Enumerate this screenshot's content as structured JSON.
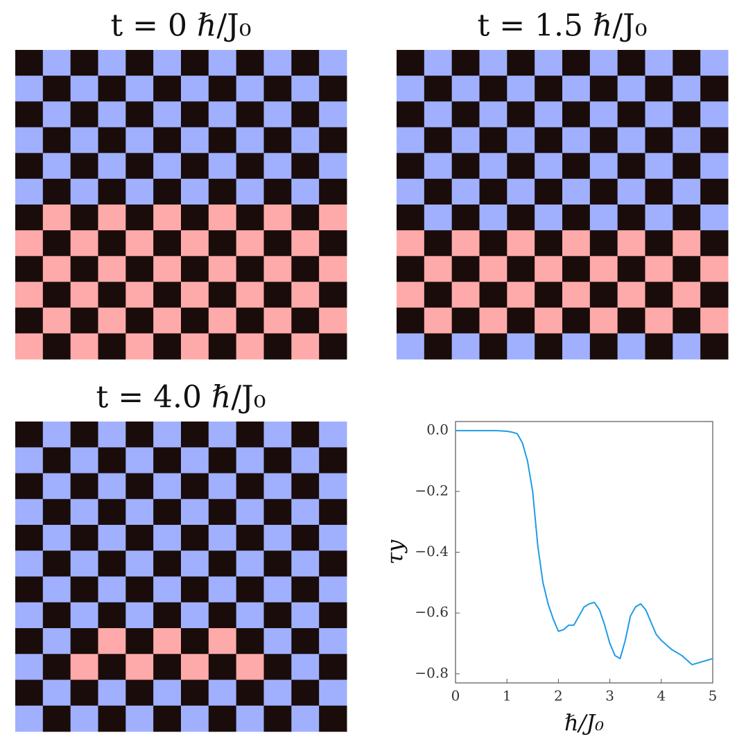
{
  "chart_data": [
    {
      "type": "grid",
      "title": "t = 0 ℏ/J₀",
      "colors": {
        "k": "#1a0c0a",
        "b": "#a0b0ff",
        "r": "#ffaaaa"
      },
      "rows": [
        "kbkbkbkbkbkb",
        "bkbkbkbkbkbk",
        "kbkbkbkbkbkb",
        "bkbkbkbkbkbk",
        "kbkbkbkbkbkb",
        "bkbkbkbkbkbk",
        "krkrkrkrkrkr",
        "rkrkrkrkrkrk",
        "krkrkrkrkrkr",
        "rkrkrkrkrkrk",
        "krkrkrkrkrkr",
        "rkrkrkrkrkrk"
      ]
    },
    {
      "type": "grid",
      "title": "t = 1.5 ℏ/J₀",
      "colors": {
        "k": "#1a0c0a",
        "b": "#a0b0ff",
        "r": "#ffaaaa"
      },
      "rows": [
        "kbkbkbkbkbkb",
        "bkbkbkbkbkbk",
        "kbkbkbkbkbkb",
        "bkbkbkbkbkbk",
        "kbkbkbkbkbkb",
        "bkbkbkbkbkbk",
        "kbkbkbkbkbkb",
        "rkrkrkrkrkrk",
        "krkrkrkrkrkr",
        "rkrkrkrkrkrk",
        "krkrkrkrkrkr",
        "bkbkbkbkbkbk"
      ]
    },
    {
      "type": "grid",
      "title": "t = 4.0 ℏ/J₀",
      "colors": {
        "k": "#1a0c0a",
        "b": "#a0b0ff",
        "r": "#ffaaaa"
      },
      "rows": [
        "kbkbkbkbkbkb",
        "bkbkbkbkbkbk",
        "kbkbkbkbkbkb",
        "bkbkbkbkbkbk",
        "kbkbkbkbkbkb",
        "bkbkbkbkbkbk",
        "kbkbkbkbkbkb",
        "bkbkbkbkbkbk",
        "kbkrkrkrkbkb",
        "bkrkrkrkrkbk",
        "kbkbkbkbkbkb",
        "bkbkbkbkbkbk"
      ]
    },
    {
      "type": "line",
      "x_label": "ℏ/J₀",
      "y_label": "τy",
      "color": "#1e9be8",
      "x": [
        0,
        0.5,
        0.8,
        1.0,
        1.1,
        1.2,
        1.3,
        1.4,
        1.5,
        1.6,
        1.7,
        1.8,
        1.9,
        2.0,
        2.1,
        2.2,
        2.3,
        2.4,
        2.5,
        2.6,
        2.7,
        2.8,
        2.9,
        3.0,
        3.1,
        3.2,
        3.3,
        3.4,
        3.5,
        3.6,
        3.7,
        3.8,
        3.9,
        4.0,
        4.2,
        4.4,
        4.6,
        4.8,
        5.0
      ],
      "values": [
        0.0,
        0.0,
        0.0,
        -0.002,
        -0.005,
        -0.01,
        -0.04,
        -0.1,
        -0.2,
        -0.38,
        -0.5,
        -0.57,
        -0.62,
        -0.66,
        -0.655,
        -0.64,
        -0.64,
        -0.61,
        -0.58,
        -0.57,
        -0.565,
        -0.59,
        -0.64,
        -0.7,
        -0.74,
        -0.75,
        -0.69,
        -0.61,
        -0.58,
        -0.57,
        -0.59,
        -0.63,
        -0.67,
        -0.69,
        -0.72,
        -0.74,
        -0.77,
        -0.76,
        -0.75
      ],
      "xlim": [
        0,
        5
      ],
      "ylim": [
        -0.83,
        0.03
      ],
      "xticks": [
        0,
        1,
        2,
        3,
        4,
        5
      ],
      "yticks": [
        {
          "value": 0,
          "label": "0.0"
        },
        {
          "value": -0.2,
          "label": "−0.2"
        },
        {
          "value": -0.4,
          "label": "−0.4"
        },
        {
          "value": -0.6,
          "label": "−0.6"
        },
        {
          "value": -0.8,
          "label": "−0.8"
        }
      ]
    }
  ]
}
